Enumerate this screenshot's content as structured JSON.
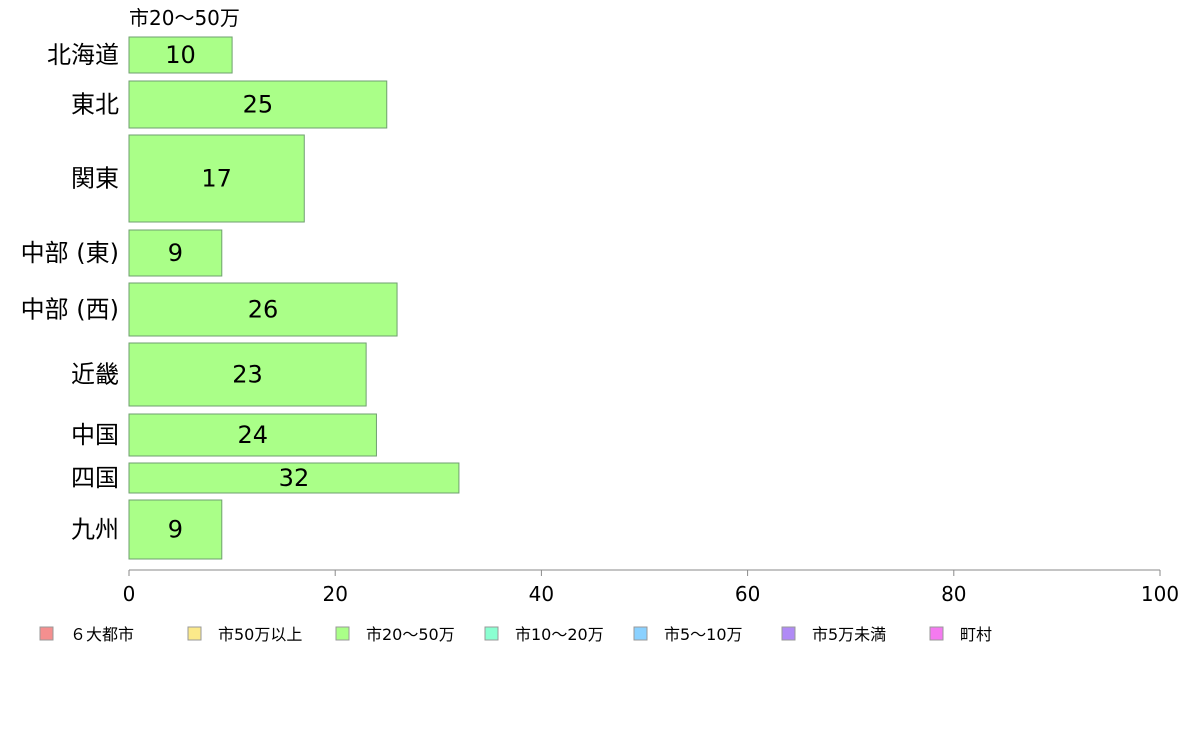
{
  "chart_data": {
    "type": "bar",
    "orientation": "horizontal",
    "panel_title": "市20〜50万",
    "categories": [
      "北海道",
      "東北",
      "関東",
      "中部 (東)",
      "中部 (西)",
      "近畿",
      "中国",
      "四国",
      "九州"
    ],
    "values": [
      10,
      25,
      17,
      9,
      26,
      23,
      24,
      32,
      9
    ],
    "xlim": [
      0,
      100
    ],
    "xticks": [
      0,
      20,
      40,
      60,
      80,
      100
    ],
    "xlabel": "",
    "ylabel": "",
    "grid": false,
    "bar_color": "#aaff88",
    "legend": {
      "placement": "bottom",
      "items": [
        {
          "label": "６大都市",
          "color": "#f48f8f"
        },
        {
          "label": "市50万以上",
          "color": "#fbe98a"
        },
        {
          "label": "市20〜50万",
          "color": "#aaff88"
        },
        {
          "label": "市10〜20万",
          "color": "#8affd1"
        },
        {
          "label": "市5〜10万",
          "color": "#8ad1ff"
        },
        {
          "label": "市5万未満",
          "color": "#b08af5"
        },
        {
          "label": "町村",
          "color": "#f47af0"
        }
      ]
    }
  }
}
